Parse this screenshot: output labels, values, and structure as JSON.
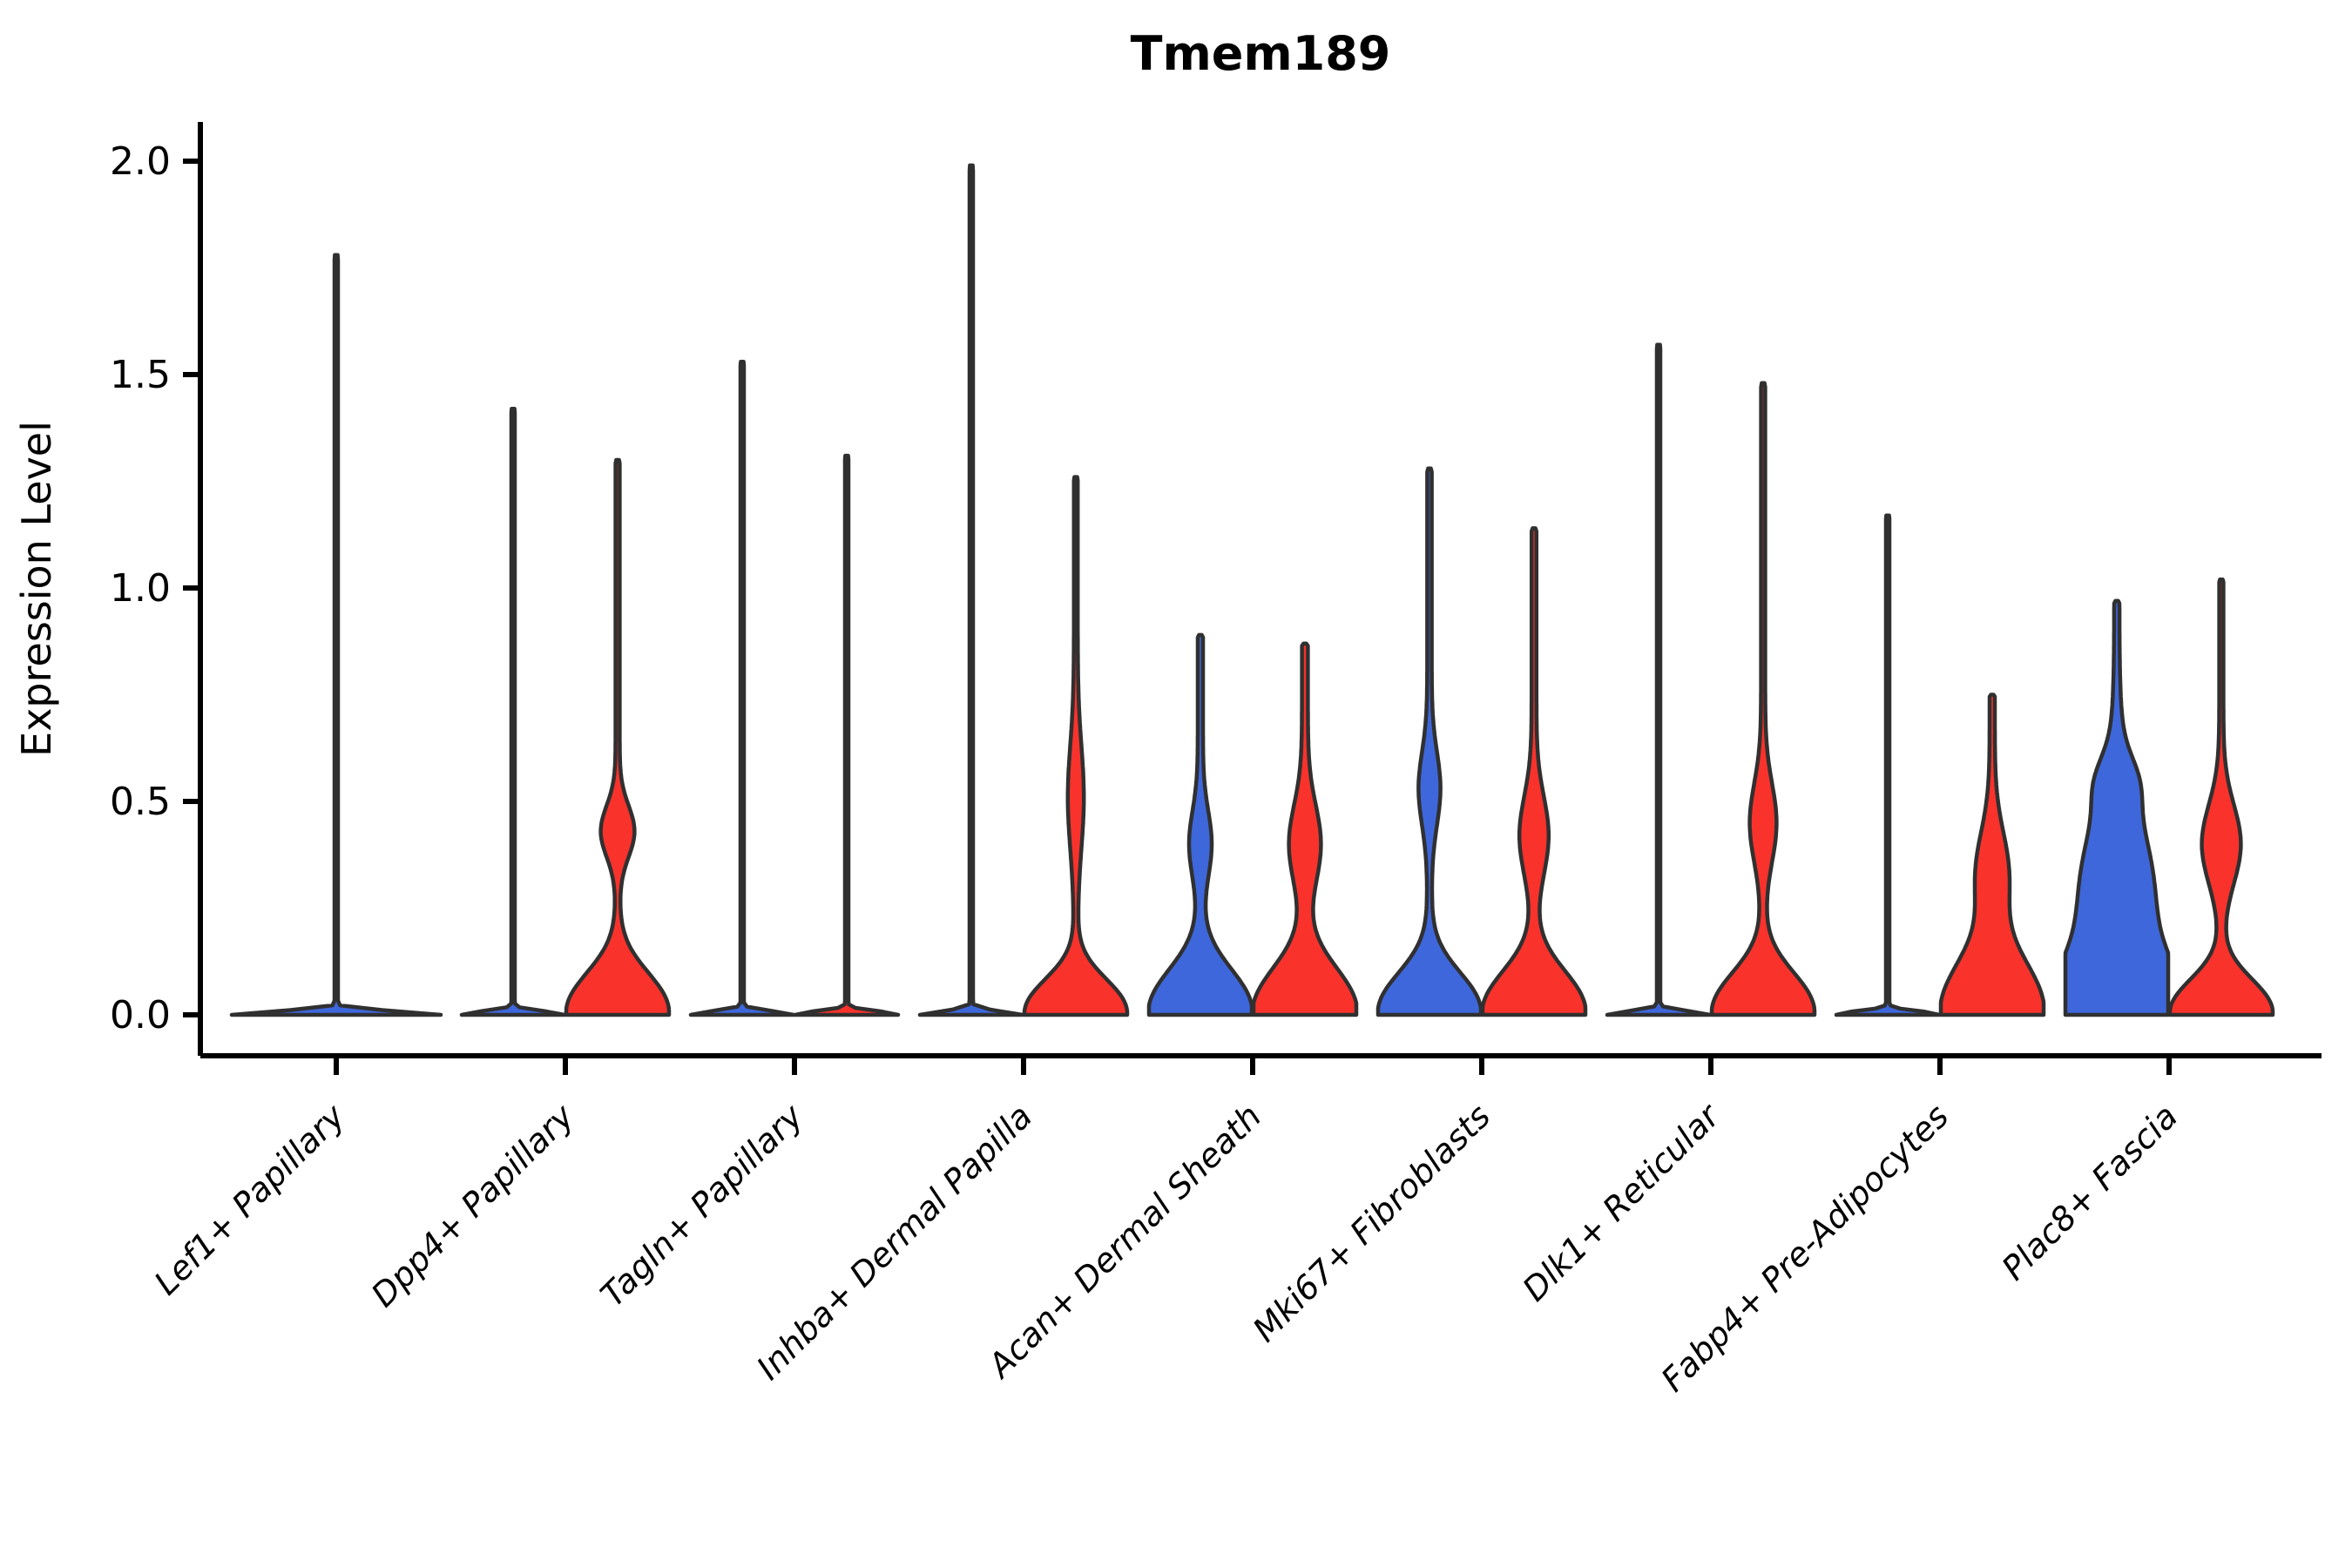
{
  "chart_data": {
    "type": "violin",
    "title": "Tmem189",
    "xlabel": "",
    "ylabel": "Expression Level",
    "yticks": [
      "0.0",
      "0.5",
      "1.0",
      "1.5",
      "2.0"
    ],
    "ytick_values": [
      0.0,
      0.5,
      1.0,
      1.5,
      2.0
    ],
    "ylim": [
      -0.1,
      2.09
    ],
    "grid": "off",
    "legend": "none",
    "categories": [
      "Lef1+ Papillary",
      "Dpp4+ Papillary",
      "Tagln+ Papillary",
      "Inhba+ Dermal Papilla",
      "Acan+ Dermal Sheath",
      "Mki67+ Fibroblasts",
      "Dlk1+ Reticular",
      "Fabp4+ Pre-Adipocytes",
      "Plac8+ Fascia"
    ],
    "groups": [
      {
        "name": "group-1",
        "color": "#3E67DB"
      },
      {
        "name": "group-2",
        "color": "#F9322C"
      }
    ],
    "outline_color": "#303030",
    "note": "Expression is concentrated at 0 for all clusters; each violin shows a flat base at 0, a mid bulge where present, and a thin spike to the maximum expression value.",
    "violins": [
      {
        "category": 0,
        "group": "single",
        "color": "#3E67DB",
        "offset": 0,
        "halfWidth": 120,
        "max": 1.78,
        "base": 2.0,
        "pancake": {
          "h": 0.012,
          "w": 118
        },
        "bumps": []
      },
      {
        "category": 1,
        "group": "group-1",
        "color": "#3E67DB",
        "offset": -60,
        "halfWidth": 59,
        "max": 1.42,
        "base": 2.0,
        "pancake": {
          "h": 0.012,
          "w": 57
        },
        "bumps": []
      },
      {
        "category": 1,
        "group": "group-2",
        "color": "#F9322C",
        "offset": 60,
        "halfWidth": 59,
        "max": 1.3,
        "base": 2.4,
        "pancake": {
          "h": 0.13,
          "w": 57
        },
        "bumps": [
          {
            "c": 0.43,
            "s": 0.085,
            "a": 17
          }
        ]
      },
      {
        "category": 2,
        "group": "group-1",
        "color": "#3E67DB",
        "offset": -60,
        "halfWidth": 59,
        "max": 1.53,
        "base": 2.0,
        "pancake": {
          "h": 0.012,
          "w": 57
        },
        "bumps": []
      },
      {
        "category": 2,
        "group": "group-2",
        "color": "#F9322C",
        "offset": 60,
        "halfWidth": 59,
        "max": 1.31,
        "base": 2.0,
        "pancake": {
          "h": 0.012,
          "w": 57
        },
        "bumps": []
      },
      {
        "category": 3,
        "group": "group-1",
        "color": "#3E67DB",
        "offset": -60,
        "halfWidth": 59,
        "max": 1.99,
        "base": 2.0,
        "pancake": {
          "h": 0.012,
          "w": 57
        },
        "bumps": []
      },
      {
        "category": 3,
        "group": "group-2",
        "color": "#F9322C",
        "offset": 60,
        "halfWidth": 59,
        "max": 1.26,
        "base": 2.2,
        "pancake": {
          "h": 0.11,
          "w": 57
        },
        "bumps": [
          {
            "c": 0.51,
            "s": 0.17,
            "a": 7
          }
        ]
      },
      {
        "category": 4,
        "group": "group-1",
        "color": "#3E67DB",
        "offset": -60,
        "halfWidth": 59,
        "max": 0.89,
        "base": 3.0,
        "pancake": {
          "h": 0.14,
          "w": 57
        },
        "bumps": [
          {
            "c": 0.4,
            "s": 0.11,
            "a": 10
          }
        ]
      },
      {
        "category": 4,
        "group": "group-2",
        "color": "#F9322C",
        "offset": 60,
        "halfWidth": 59,
        "max": 0.87,
        "base": 3.4,
        "pancake": {
          "h": 0.145,
          "w": 57
        },
        "bumps": [
          {
            "c": 0.4,
            "s": 0.13,
            "a": 15
          }
        ]
      },
      {
        "category": 5,
        "group": "group-1",
        "color": "#3E67DB",
        "offset": -60,
        "halfWidth": 59,
        "max": 1.28,
        "base": 2.6,
        "pancake": {
          "h": 0.13,
          "w": 57
        },
        "bumps": [
          {
            "c": 0.53,
            "s": 0.12,
            "a": 10
          }
        ]
      },
      {
        "category": 5,
        "group": "group-2",
        "color": "#F9322C",
        "offset": 60,
        "halfWidth": 59,
        "max": 1.14,
        "base": 2.8,
        "pancake": {
          "h": 0.135,
          "w": 57
        },
        "bumps": [
          {
            "c": 0.42,
            "s": 0.13,
            "a": 14
          }
        ]
      },
      {
        "category": 6,
        "group": "group-1",
        "color": "#3E67DB",
        "offset": -60,
        "halfWidth": 59,
        "max": 1.57,
        "base": 2.0,
        "pancake": {
          "h": 0.012,
          "w": 57
        },
        "bumps": []
      },
      {
        "category": 6,
        "group": "group-2",
        "color": "#F9322C",
        "offset": 60,
        "halfWidth": 59,
        "max": 1.48,
        "base": 2.4,
        "pancake": {
          "h": 0.13,
          "w": 57
        },
        "bumps": [
          {
            "c": 0.45,
            "s": 0.13,
            "a": 13
          }
        ]
      },
      {
        "category": 7,
        "group": "group-1",
        "color": "#3E67DB",
        "offset": -60,
        "halfWidth": 59,
        "max": 1.17,
        "base": 2.0,
        "pancake": {
          "h": 0.012,
          "w": 57
        },
        "bumps": []
      },
      {
        "category": 7,
        "group": "group-2",
        "color": "#F9322C",
        "offset": 60,
        "halfWidth": 59,
        "max": 0.75,
        "base": 3.0,
        "pancake": {
          "h": 0.17,
          "w": 57
        },
        "bumps": [
          {
            "c": 0.33,
            "s": 0.14,
            "a": 16
          }
        ]
      },
      {
        "category": 8,
        "group": "group-1",
        "color": "#3E67DB",
        "offset": -60,
        "halfWidth": 59,
        "max": 0.97,
        "base": 3.0,
        "pancake": {
          "h": 0.16,
          "w": 57
        },
        "bumps": [
          {
            "c": 0.28,
            "s": 0.26,
            "a": 40
          },
          {
            "c": 0.55,
            "s": 0.08,
            "a": 10
          }
        ]
      },
      {
        "category": 8,
        "group": "group-2",
        "color": "#F9322C",
        "offset": 60,
        "halfWidth": 59,
        "max": 1.02,
        "base": 2.4,
        "pancake": {
          "h": 0.11,
          "w": 57
        },
        "bumps": [
          {
            "c": 0.4,
            "s": 0.13,
            "a": 20
          }
        ]
      }
    ]
  }
}
